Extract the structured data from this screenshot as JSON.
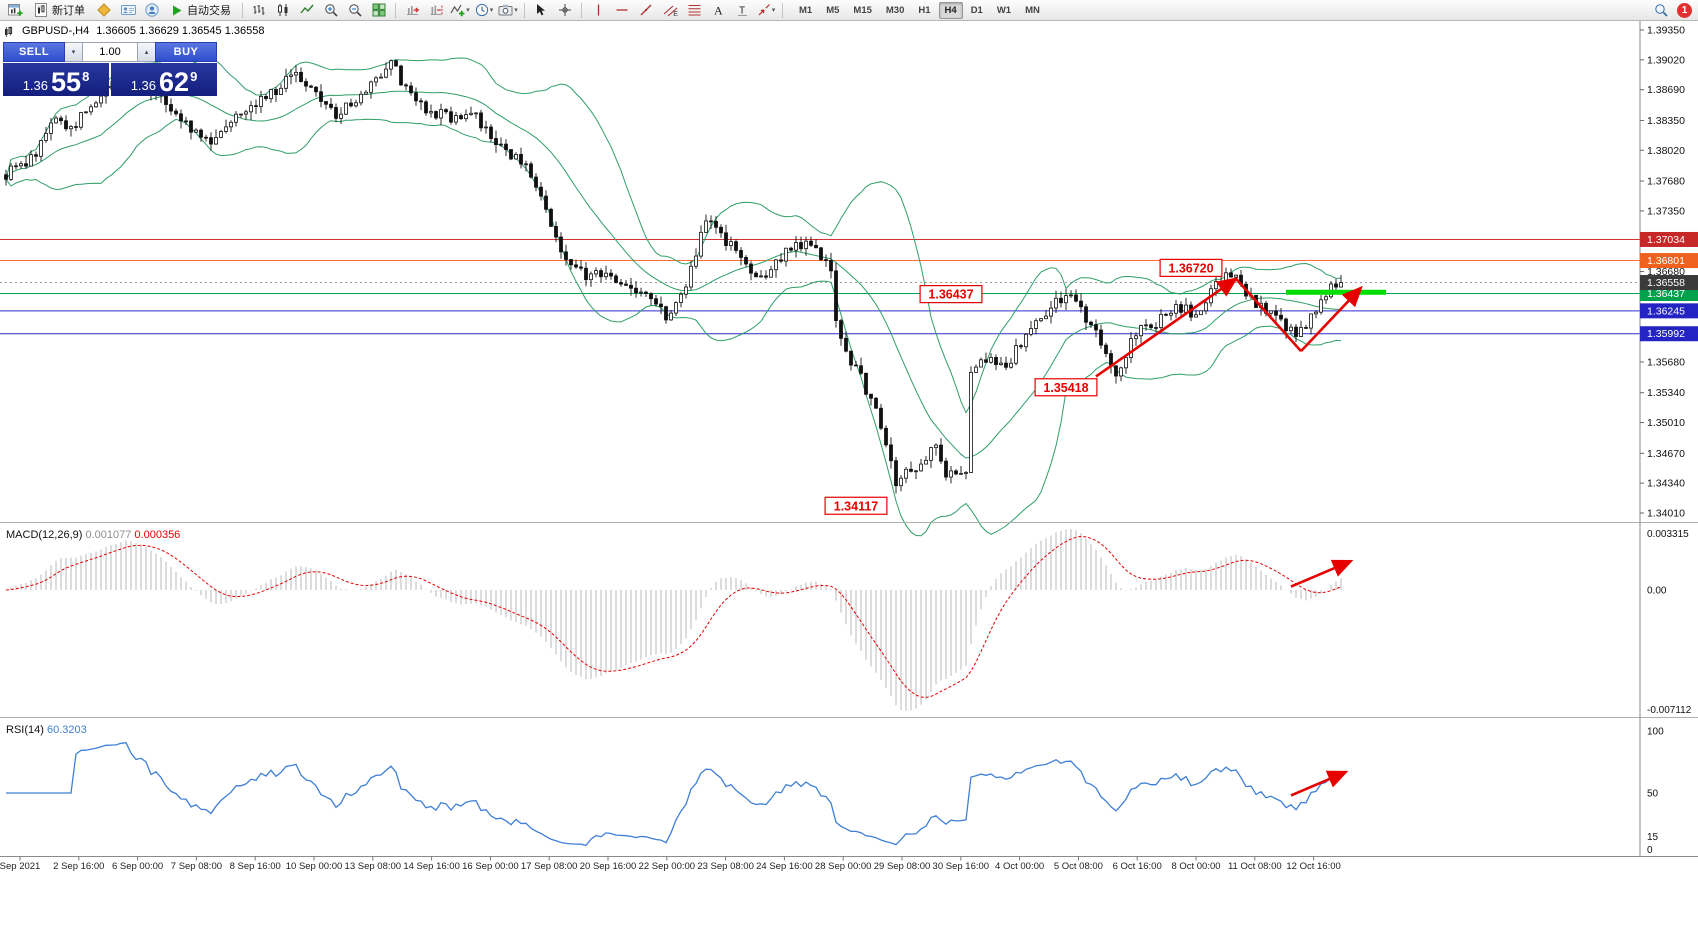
{
  "toolbar": {
    "new_order_label": "新订单",
    "autotrade_label": "自动交易",
    "timeframes": [
      "M1",
      "M5",
      "M15",
      "M30",
      "H1",
      "H4",
      "D1",
      "W1",
      "MN"
    ],
    "active_timeframe": "H4",
    "notification_count": "1"
  },
  "chart_header": {
    "symbol_text": "GBPUSD-,H4",
    "ohlc_text": "1.36605 1.36629 1.36545 1.36558"
  },
  "trade_panel": {
    "sell_label": "SELL",
    "buy_label": "BUY",
    "volume_value": "1.00",
    "sell_price": {
      "prefix": "1.36",
      "big": "55",
      "sup": "8"
    },
    "buy_price": {
      "prefix": "1.36",
      "big": "62",
      "sup": "9"
    }
  },
  "chart_data": {
    "type": "candlestick",
    "symbol": "GBPUSD-",
    "timeframe": "H4",
    "bar_count": 268,
    "last_close": 1.36558,
    "price_min": 1.3401,
    "price_max": 1.3935,
    "current_price": 1.36558,
    "current_price_badge": "1.36558",
    "bollinger": {
      "period": 20,
      "deviation": 2
    },
    "price_axis_ticks": [
      "1.39350",
      "1.39020",
      "1.38690",
      "1.38350",
      "1.38020",
      "1.37680",
      "1.37350",
      "1.36680",
      "1.36350",
      "1.36010",
      "1.35680",
      "1.35340",
      "1.35010",
      "1.34670",
      "1.34340",
      "1.34010"
    ],
    "levels": [
      {
        "price": 1.37034,
        "label": "1.37034",
        "line_color": "#d23434",
        "badge_color": "#c62828"
      },
      {
        "price": 1.36801,
        "label": "1.36801",
        "line_color": "#ff6a30",
        "badge_color": "#f0601f"
      },
      {
        "price": 1.36437,
        "label": "1.36437",
        "line_color": "#00a651",
        "badge_color": "#00a14d"
      },
      {
        "price": 1.36245,
        "label": "1.36245",
        "line_color": "#2a2ad0",
        "badge_color": "#2424c4"
      },
      {
        "price": 1.35992,
        "label": "1.35992",
        "line_color": "#2a2ad0",
        "badge_color": "#2424c4"
      }
    ],
    "callouts": [
      {
        "text": "1.36720",
        "bar": 237,
        "price": 1.3672
      },
      {
        "text": "1.36437",
        "bar": 189,
        "price": 1.3643
      },
      {
        "text": "1.35418",
        "bar": 212,
        "price": 1.354
      },
      {
        "text": "1.34117",
        "bar": 170,
        "price": 1.3409
      }
    ],
    "trend_arrows": [
      {
        "from": [
          218,
          1.3552
        ],
        "to": [
          246,
          1.366
        ],
        "head": true
      },
      {
        "from": [
          246,
          1.366
        ],
        "to": [
          259,
          1.358
        ],
        "head": false
      },
      {
        "from": [
          259,
          1.358
        ],
        "to": [
          271,
          1.365
        ],
        "head": true
      }
    ],
    "green_segment": {
      "from_bar": 256,
      "to_bar": 276,
      "price": 1.3645,
      "color": "#00dd00",
      "width": 5
    },
    "price_path": [
      [
        0,
        1.3775
      ],
      [
        4,
        1.3788
      ],
      [
        6,
        1.38
      ],
      [
        10,
        1.3838
      ],
      [
        13,
        1.3825
      ],
      [
        18,
        1.3858
      ],
      [
        24,
        1.3885
      ],
      [
        28,
        1.3872
      ],
      [
        32,
        1.3856
      ],
      [
        36,
        1.3832
      ],
      [
        40,
        1.3812
      ],
      [
        42,
        1.3818
      ],
      [
        46,
        1.3845
      ],
      [
        50,
        1.3856
      ],
      [
        54,
        1.3868
      ],
      [
        58,
        1.3888
      ],
      [
        62,
        1.3862
      ],
      [
        66,
        1.3842
      ],
      [
        70,
        1.3856
      ],
      [
        74,
        1.388
      ],
      [
        77,
        1.3906
      ],
      [
        79,
        1.3876
      ],
      [
        82,
        1.3856
      ],
      [
        86,
        1.3842
      ],
      [
        90,
        1.3838
      ],
      [
        93,
        1.3845
      ],
      [
        96,
        1.3822
      ],
      [
        100,
        1.3802
      ],
      [
        104,
        1.3784
      ],
      [
        108,
        1.3732
      ],
      [
        112,
        1.3684
      ],
      [
        116,
        1.3662
      ],
      [
        120,
        1.3668
      ],
      [
        124,
        1.3652
      ],
      [
        128,
        1.3642
      ],
      [
        132,
        1.3618
      ],
      [
        136,
        1.3655
      ],
      [
        140,
        1.3722
      ],
      [
        144,
        1.3702
      ],
      [
        148,
        1.3672
      ],
      [
        152,
        1.3662
      ],
      [
        156,
        1.3692
      ],
      [
        160,
        1.3702
      ],
      [
        164,
        1.3682
      ],
      [
        165,
        1.3674
      ],
      [
        166,
        1.3612
      ],
      [
        168,
        1.3578
      ],
      [
        171,
        1.355
      ],
      [
        174,
        1.3512
      ],
      [
        176,
        1.3475
      ],
      [
        178,
        1.3435
      ],
      [
        180,
        1.3452
      ],
      [
        182,
        1.3448
      ],
      [
        184,
        1.3462
      ],
      [
        186,
        1.3472
      ],
      [
        188,
        1.3445
      ],
      [
        190,
        1.344
      ],
      [
        192,
        1.3452
      ],
      [
        193,
        1.3555
      ],
      [
        196,
        1.3572
      ],
      [
        200,
        1.3562
      ],
      [
        204,
        1.36
      ],
      [
        208,
        1.3622
      ],
      [
        212,
        1.3642
      ],
      [
        216,
        1.3618
      ],
      [
        220,
        1.358
      ],
      [
        222,
        1.3552
      ],
      [
        226,
        1.36
      ],
      [
        230,
        1.3612
      ],
      [
        234,
        1.3632
      ],
      [
        238,
        1.362
      ],
      [
        242,
        1.3652
      ],
      [
        245,
        1.3668
      ],
      [
        248,
        1.3642
      ],
      [
        252,
        1.3622
      ],
      [
        256,
        1.3606
      ],
      [
        258,
        1.3596
      ],
      [
        261,
        1.3618
      ],
      [
        264,
        1.3645
      ],
      [
        267,
        1.36558
      ]
    ],
    "x_axis_labels": [
      "Sep 2021",
      "2 Sep 16:00",
      "6 Sep 00:00",
      "7 Sep 08:00",
      "8 Sep 16:00",
      "10 Sep 00:00",
      "13 Sep 08:00",
      "14 Sep 16:00",
      "16 Sep 00:00",
      "17 Sep 08:00",
      "20 Sep 16:00",
      "22 Sep 00:00",
      "23 Sep 08:00",
      "24 Sep 16:00",
      "28 Sep 00:00",
      "29 Sep 08:00",
      "30 Sep 16:00",
      "4 Oct 00:00",
      "5 Oct 08:00",
      "6 Oct 16:00",
      "8 Oct 00:00",
      "11 Oct 08:00",
      "12 Oct 16:00"
    ],
    "macd": {
      "label": "MACD(12,26,9)",
      "value_main": "0.001077",
      "value_signal": "0.000356",
      "axis_labels": [
        "0.003315",
        "0.00",
        "-0.007112"
      ],
      "arrow": {
        "from": [
          257,
          0.0002
        ],
        "to": [
          269,
          0.0017
        ]
      }
    },
    "rsi": {
      "label": "RSI(14)",
      "value": "60.3203",
      "axis_labels": [
        "100",
        "50",
        "15",
        "0"
      ],
      "arrow": {
        "from": [
          257,
          48
        ],
        "to": [
          268,
          67
        ]
      }
    }
  }
}
